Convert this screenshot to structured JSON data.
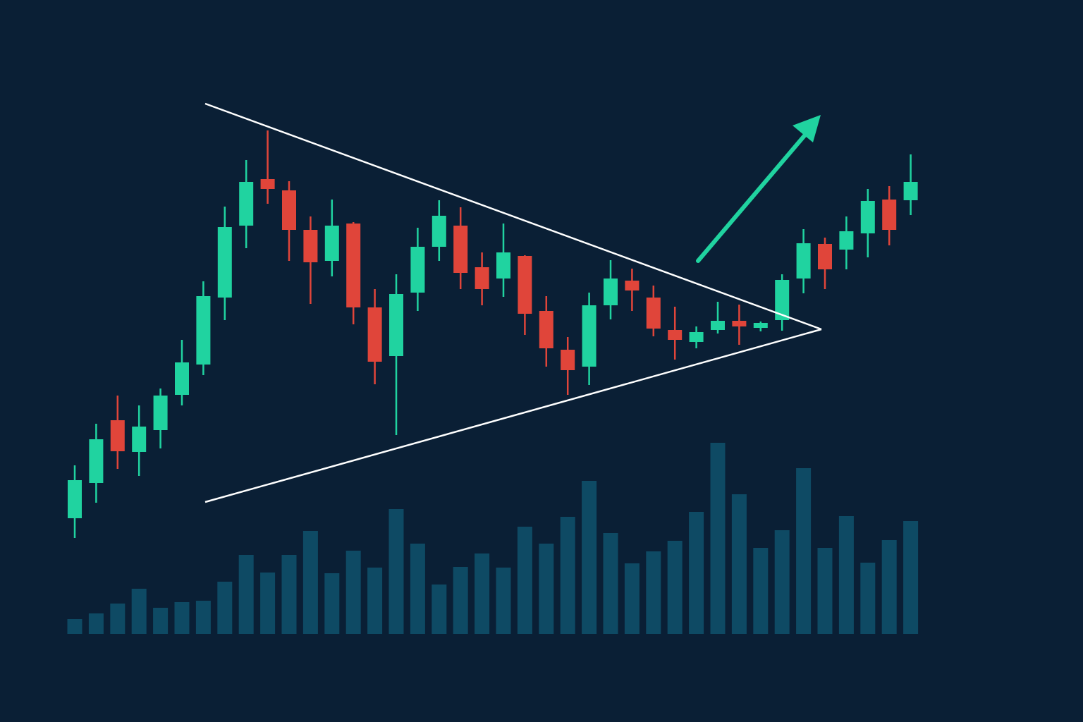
{
  "chart_data": {
    "type": "candlestick",
    "up_color": "#20d3a0",
    "down_color": "#e0453a",
    "volume_color": "#0e4a64",
    "ylim": [
      0,
      1024
    ],
    "y2lim": [
      0,
      899
    ],
    "open": [
      289,
      339,
      428,
      383,
      414,
      464,
      507,
      602,
      704,
      770,
      754,
      698,
      654,
      707,
      588,
      519,
      609,
      674,
      704,
      645,
      629,
      661,
      583,
      528,
      504,
      591,
      626,
      602,
      556,
      539,
      556,
      569,
      559,
      570,
      629,
      678,
      670,
      693,
      741,
      740
    ],
    "high": [
      364,
      423,
      463,
      449,
      473,
      542,
      625,
      731,
      797,
      839,
      767,
      717,
      741,
      709,
      614,
      635,
      701,
      740,
      730,
      666,
      707,
      662,
      604,
      546,
      609,
      655,
      643,
      619,
      589,
      561,
      596,
      592,
      568,
      635,
      699,
      687,
      717,
      756,
      760,
      805
    ],
    "low": [
      261,
      311,
      359,
      349,
      388,
      449,
      492,
      570,
      672,
      735,
      654,
      593,
      632,
      564,
      479,
      407,
      583,
      654,
      614,
      591,
      603,
      549,
      504,
      464,
      478,
      571,
      583,
      547,
      514,
      530,
      551,
      535,
      554,
      555,
      608,
      614,
      642,
      659,
      676,
      719
    ],
    "close": [
      343,
      401,
      384,
      419,
      463,
      510,
      604,
      702,
      766,
      756,
      698,
      652,
      704,
      588,
      511,
      607,
      674,
      718,
      637,
      614,
      666,
      579,
      530,
      499,
      591,
      629,
      612,
      558,
      542,
      553,
      569,
      561,
      566,
      627,
      679,
      642,
      696,
      739,
      698,
      766
    ],
    "volume": [
      21,
      29,
      43,
      64,
      37,
      45,
      47,
      74,
      112,
      87,
      112,
      146,
      86,
      118,
      94,
      177,
      128,
      70,
      95,
      114,
      94,
      152,
      128,
      166,
      217,
      143,
      100,
      117,
      132,
      173,
      271,
      198,
      122,
      147,
      235,
      122,
      167,
      101,
      133,
      160
    ]
  }
}
